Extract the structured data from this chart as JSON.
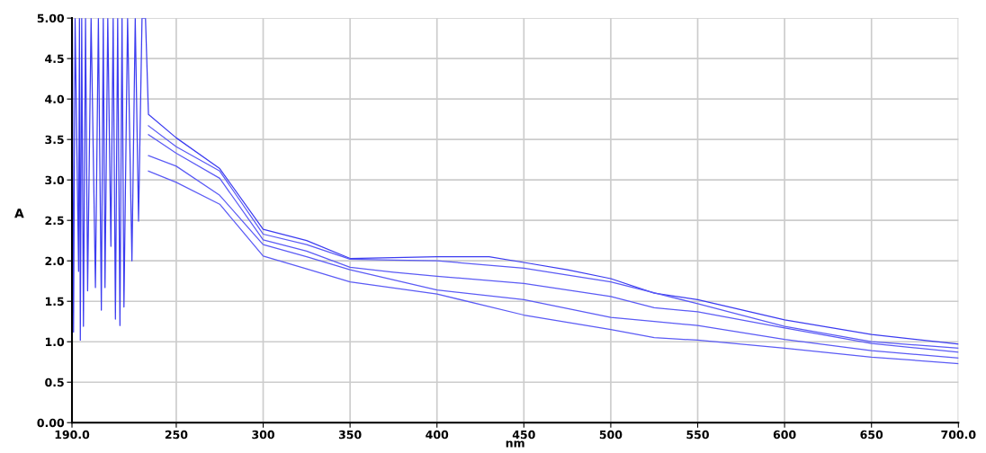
{
  "chart_data": {
    "type": "line",
    "xlabel": "nm",
    "ylabel": "A",
    "xlim": [
      190,
      700
    ],
    "ylim": [
      0,
      5
    ],
    "xticks": [
      {
        "value": 190,
        "label": "190.0"
      },
      250,
      300,
      350,
      400,
      450,
      500,
      550,
      600,
      650,
      {
        "value": 700,
        "label": "700.0"
      }
    ],
    "yticks": [
      {
        "value": 0,
        "label": "0.00"
      },
      0.5,
      {
        "value": 1,
        "label": "1.0"
      },
      1.5,
      {
        "value": 2,
        "label": "2.0"
      },
      2.5,
      {
        "value": 3,
        "label": "3.0"
      },
      3.5,
      {
        "value": 4,
        "label": "4.0"
      },
      4.5,
      {
        "value": 5,
        "label": "5.00"
      }
    ],
    "grid": true,
    "marker": "none",
    "line_style": "solid",
    "series": [
      {
        "color": "#3c3cf0",
        "x": [
          190.2,
          190.9,
          191.8,
          193.8,
          194.3,
          194.8,
          195.6,
          196.6,
          197.8,
          199.0,
          201.0,
          203.5,
          205.2,
          206.9,
          208.0,
          209.0,
          210.6,
          212.4,
          213.7,
          215.0,
          216.3,
          217.6,
          218.8,
          219.9,
          222.0,
          224.5,
          226.4,
          228.3,
          230.3,
          232.3,
          234,
          250,
          275,
          300,
          325,
          350,
          375,
          400,
          430,
          450,
          475,
          500,
          525,
          550,
          600,
          650,
          700
        ],
        "values": [
          5.0,
          1.12,
          5.0,
          1.87,
          5.0,
          1.02,
          5.0,
          1.19,
          5.0,
          1.63,
          5.0,
          1.67,
          5.0,
          1.39,
          5.0,
          1.67,
          5.0,
          2.18,
          5.0,
          1.28,
          5.0,
          1.2,
          5.0,
          1.43,
          5.0,
          2.0,
          5.0,
          2.49,
          5.0,
          5.0,
          3.81,
          3.52,
          3.14,
          2.39,
          2.25,
          2.03,
          2.04,
          2.05,
          2.05,
          1.98,
          1.89,
          1.78,
          1.6,
          1.52,
          1.27,
          1.09,
          0.97
        ]
      },
      {
        "color": "#5b5bf5",
        "x": [
          234,
          250,
          275,
          300,
          325,
          350,
          375,
          400,
          450,
          500,
          550,
          600,
          650,
          700
        ],
        "values": [
          3.67,
          3.41,
          3.11,
          2.33,
          2.2,
          2.02,
          2.01,
          2.0,
          1.91,
          1.74,
          1.47,
          1.19,
          1.0,
          0.92
        ]
      },
      {
        "color": "#5b5bf5",
        "x": [
          234,
          250,
          275,
          300,
          325,
          350,
          375,
          400,
          450,
          500,
          525,
          550,
          600,
          650,
          700
        ],
        "values": [
          3.56,
          3.33,
          3.02,
          2.26,
          2.12,
          1.92,
          1.86,
          1.81,
          1.72,
          1.56,
          1.42,
          1.37,
          1.17,
          0.98,
          0.87
        ]
      },
      {
        "color": "#5b5bf5",
        "x": [
          234,
          250,
          275,
          300,
          325,
          350,
          400,
          450,
          500,
          525,
          550,
          600,
          650,
          700
        ],
        "values": [
          3.3,
          3.17,
          2.81,
          2.2,
          2.05,
          1.89,
          1.64,
          1.52,
          1.3,
          1.25,
          1.2,
          1.03,
          0.89,
          0.8
        ]
      },
      {
        "color": "#5b5bf5",
        "x": [
          234,
          250,
          275,
          300,
          325,
          350,
          400,
          450,
          500,
          525,
          550,
          600,
          650,
          700
        ],
        "values": [
          3.11,
          2.97,
          2.7,
          2.06,
          1.9,
          1.74,
          1.59,
          1.33,
          1.15,
          1.05,
          1.02,
          0.92,
          0.81,
          0.73
        ]
      }
    ]
  }
}
